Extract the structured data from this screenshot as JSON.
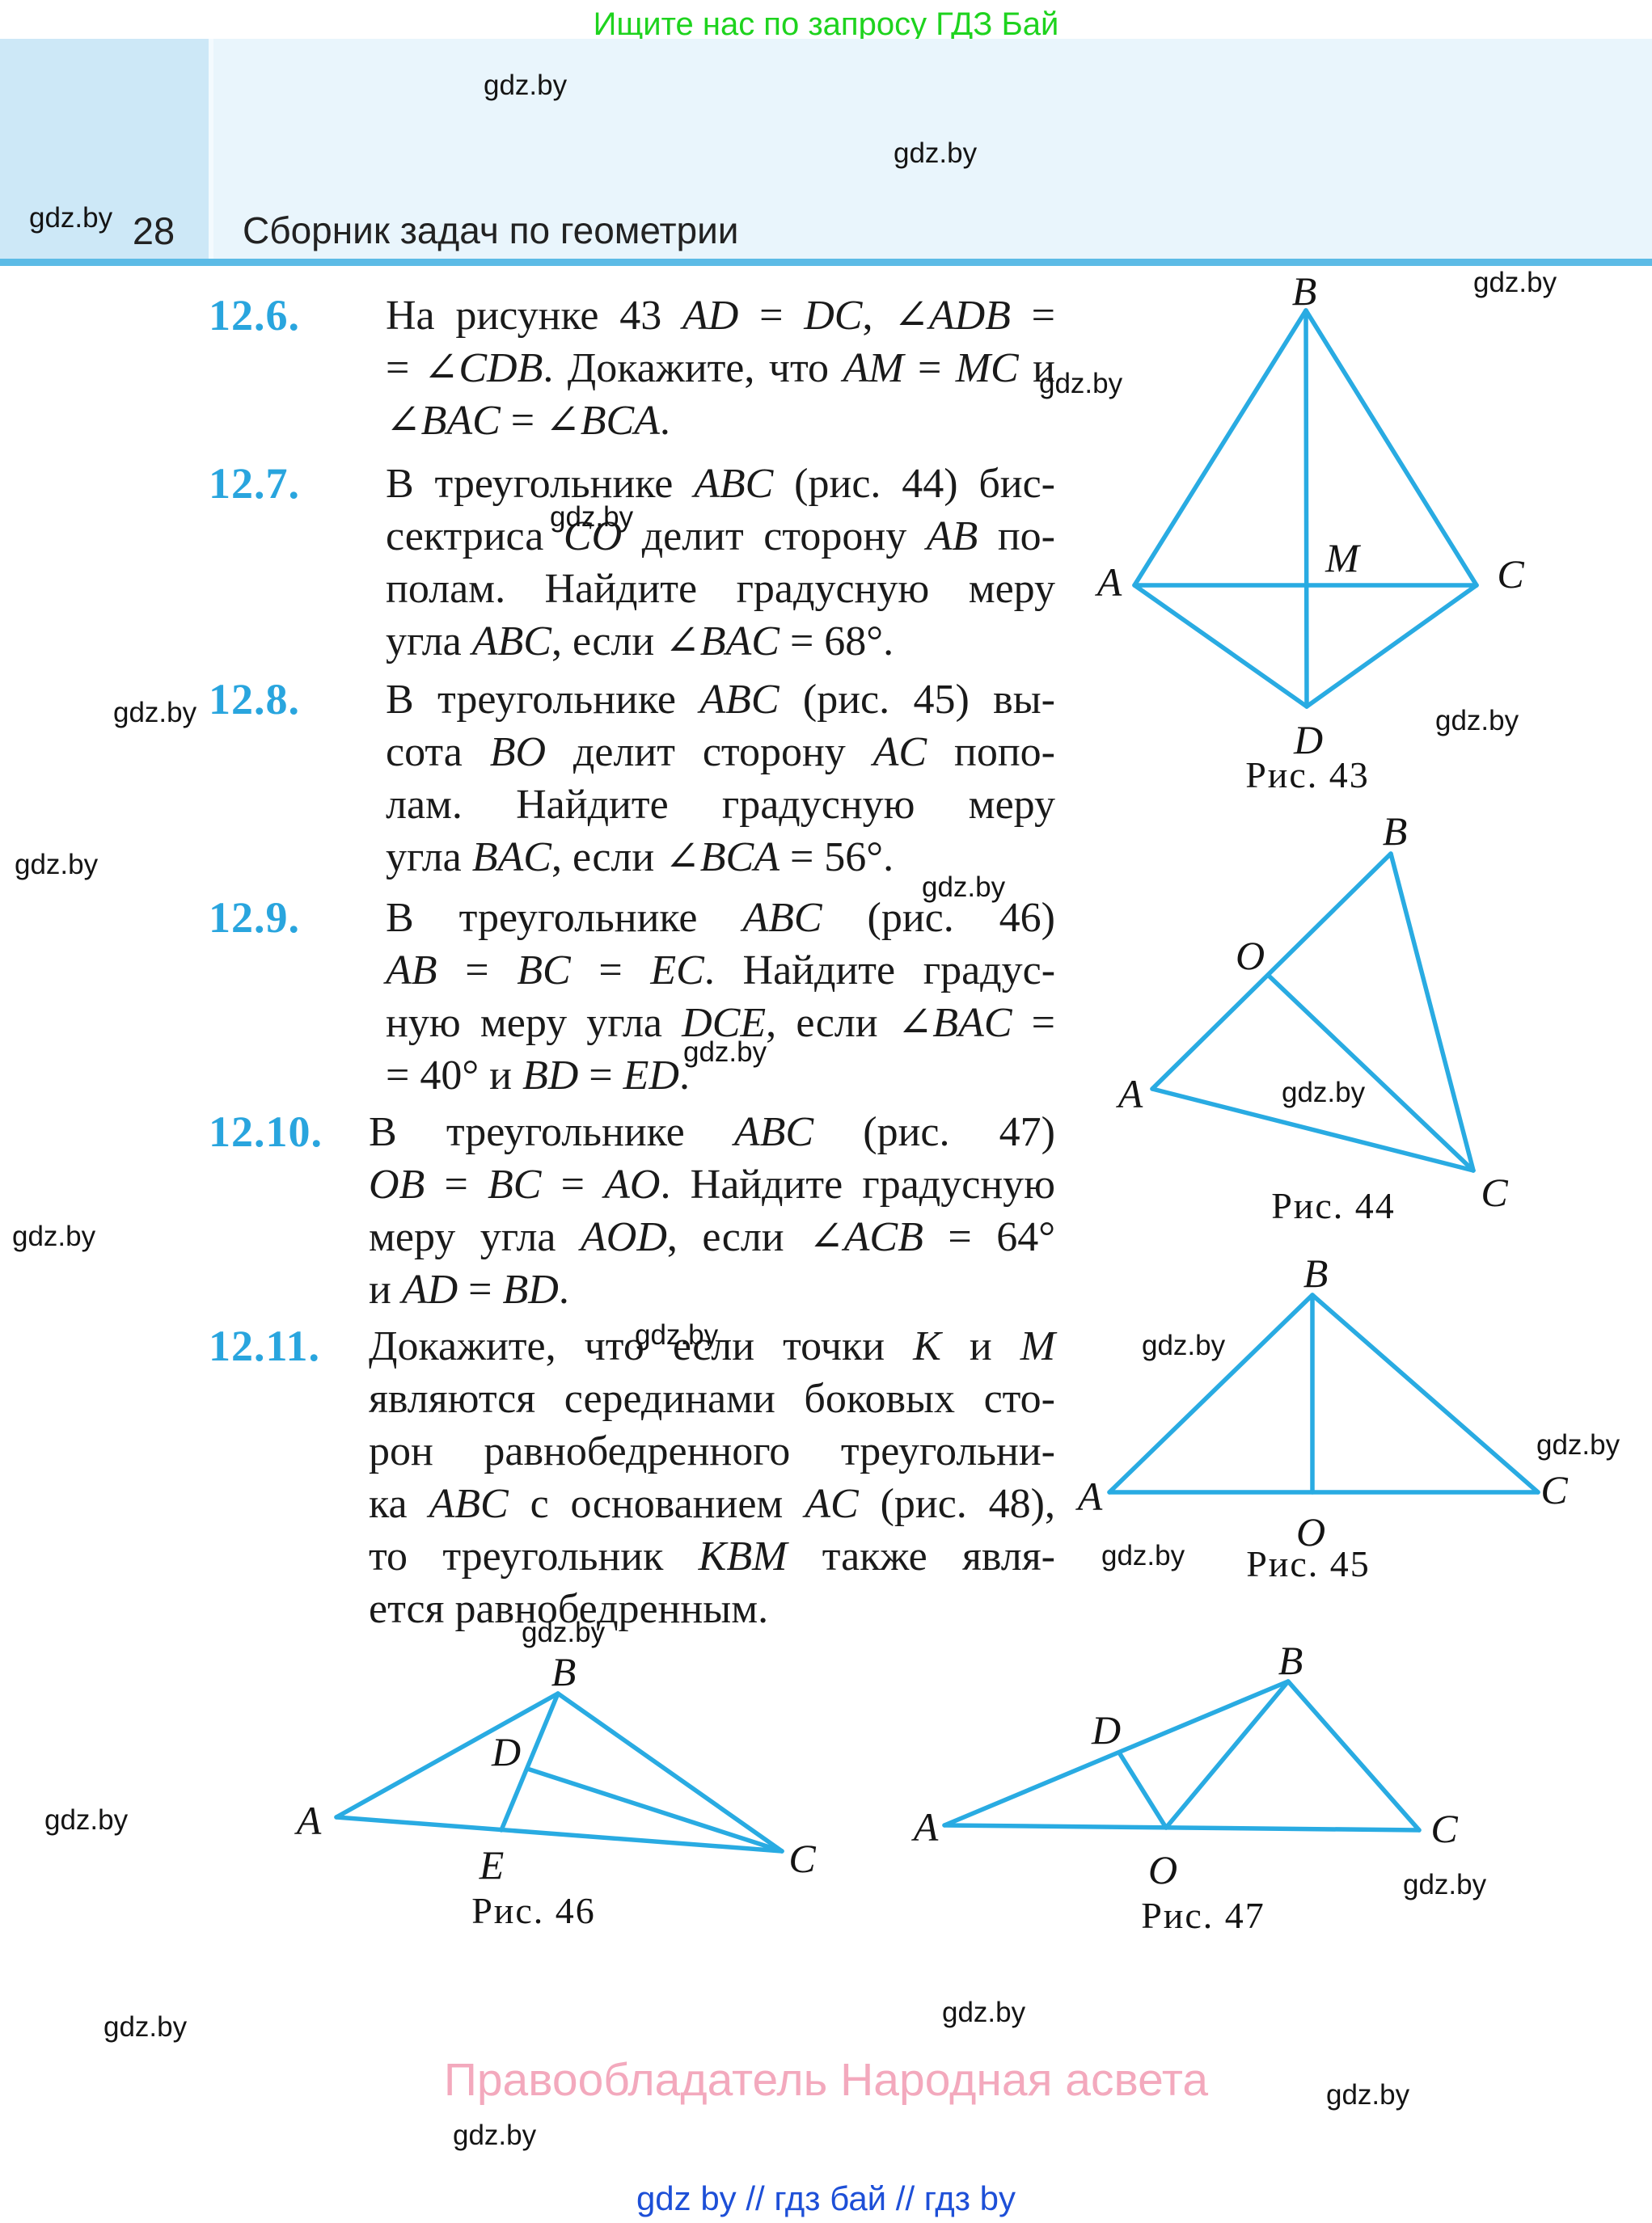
{
  "notice_top": "Ищите нас по запросу ГДЗ Бай",
  "watermark": "gdz.by",
  "header": {
    "page_number": "28",
    "title": "Сборник задач по геометрии"
  },
  "problems": [
    {
      "number": "12.6.",
      "lines": [
        "На рисунке 43 AD = DC, ∠ADB =",
        "= ∠CDB. Докажите, что AM = MC и",
        "∠BAC = ∠BCA."
      ]
    },
    {
      "number": "12.7.",
      "lines": [
        "В треугольнике ABC (рис. 44) бис-",
        "сектриса CO делит сторону AB по-",
        "полам. Найдите градусную меру",
        "угла ABC, если ∠BAC = 68°."
      ]
    },
    {
      "number": "12.8.",
      "lines": [
        "В треугольнике ABC (рис. 45) вы-",
        "сота BO делит сторону AC попо-",
        "лам. Найдите градусную меру",
        "угла BAC, если ∠BCA = 56°."
      ]
    },
    {
      "number": "12.9.",
      "lines": [
        "В треугольнике ABC (рис. 46)",
        "AB = BC = EC. Найдите градус-",
        "ную меру угла DCE, если ∠BAC =",
        "= 40° и BD = ED."
      ]
    },
    {
      "number": "12.10.",
      "lines": [
        "В треугольнике ABC (рис. 47)",
        "OB = BC = AO. Найдите градусную",
        "меру угла AOD, если ∠ACB = 64°",
        "и AD = BD."
      ]
    },
    {
      "number": "12.11.",
      "lines": [
        "Докажите, что если точки K и M",
        "являются серединами боковых сто-",
        "рон равнобедренного треугольни-",
        "ка ABC с основанием AC (рис. 48),",
        "то треугольник KBM также явля-",
        "ется равнобедренным."
      ]
    }
  ],
  "figures": [
    {
      "caption": "Рис. 43",
      "labels": {
        "A": "A",
        "B": "B",
        "C": "C",
        "D": "D",
        "M": "M"
      }
    },
    {
      "caption": "Рис. 44",
      "labels": {
        "A": "A",
        "B": "B",
        "C": "C",
        "O": "O"
      }
    },
    {
      "caption": "Рис. 45",
      "labels": {
        "A": "A",
        "B": "B",
        "C": "C",
        "O": "O"
      }
    },
    {
      "caption": "Рис. 46",
      "labels": {
        "A": "A",
        "B": "B",
        "C": "C",
        "D": "D",
        "E": "E"
      }
    },
    {
      "caption": "Рис. 47",
      "labels": {
        "A": "A",
        "B": "B",
        "C": "C",
        "D": "D",
        "O": "O"
      }
    }
  ],
  "footer": {
    "copyright": "Правообладатель Народная асвета",
    "links": "gdz by  //  гдз бай  //  гдз by"
  },
  "colors": {
    "figure_line": "#29abe2",
    "problem_number": "#29a5de",
    "band": "#e9f5fc",
    "band_left": "#cde8f7",
    "band_rule": "#5cbbe6",
    "notice_green": "#1ed31e",
    "copyright_pink": "#f3a9bd",
    "links_blue": "#1d4fd7"
  }
}
